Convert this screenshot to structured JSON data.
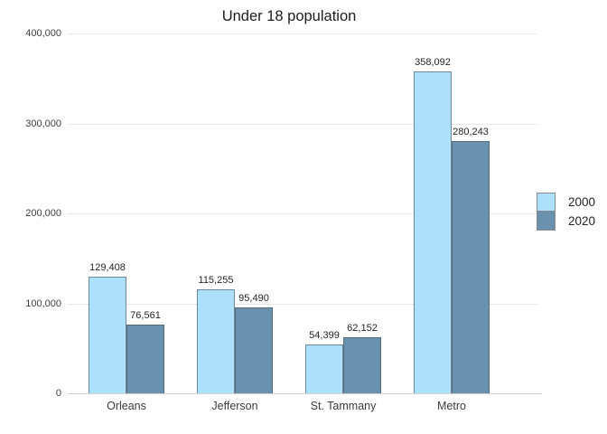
{
  "chart_data": {
    "type": "bar",
    "title": "Under 18 population",
    "categories": [
      "Orleans",
      "Jefferson",
      "St. Tammany",
      "Metro"
    ],
    "series": [
      {
        "name": "2000",
        "values": [
          129408,
          115255,
          54399,
          358092
        ],
        "value_labels": [
          "129,408",
          "115,255",
          "54,399",
          "358,092"
        ],
        "color": "#ade1fb",
        "border_color": "#6f8798"
      },
      {
        "name": "2020",
        "values": [
          76561,
          95490,
          62152,
          280243
        ],
        "value_labels": [
          "76,561",
          "95,490",
          "62,152",
          "280,243"
        ],
        "color": "#6a91ae",
        "border_color": "#566a79"
      }
    ],
    "xlabel": "",
    "ylabel": "",
    "ylim": [
      0,
      400000
    ],
    "yticks": [
      {
        "value": 0,
        "label": "0"
      },
      {
        "value": 100000,
        "label": "100,000"
      },
      {
        "value": 200000,
        "label": "200,000"
      },
      {
        "value": 300000,
        "label": "300,000"
      },
      {
        "value": 400000,
        "label": "400,000"
      }
    ],
    "grid": true,
    "legend_position": "right",
    "legend_entries": [
      "2000",
      "2020"
    ]
  },
  "colors": {
    "background": "#ffffff",
    "gridline": "#e7e7e7",
    "axis_line": "#d2d2d2",
    "title_text": "#1d1d1d",
    "tick_text": "#3f3f3f"
  }
}
